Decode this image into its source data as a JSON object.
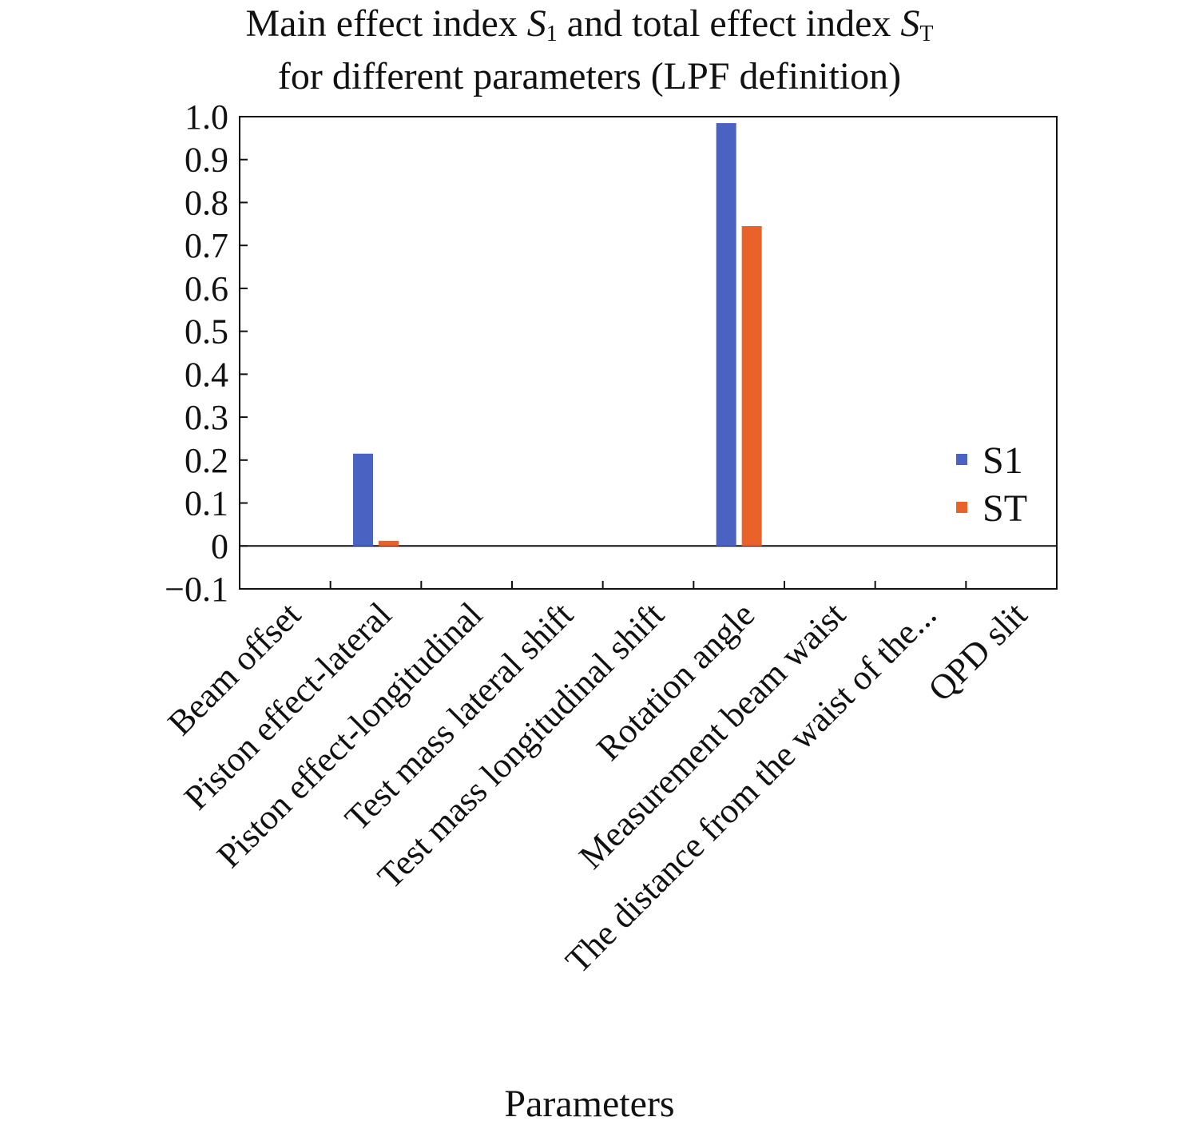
{
  "chart_data": {
    "type": "bar",
    "title": {
      "line1_prefix": "Main effect index ",
      "s1_main": "S",
      "s1_sub": "1",
      "line1_mid": " and total effect index ",
      "st_main": "S",
      "st_sub": "T",
      "line2": "for different parameters (LPF definition)"
    },
    "xlabel": "Parameters",
    "ylabel": "",
    "categories": [
      "Beam offset",
      "Piston effect-lateral",
      "Piston effect-longitudinal",
      "Test mass lateral shift",
      "Test mass longitudinal shift",
      "Rotation angle",
      "Measurement beam waist",
      "The distance from the waist of the...",
      "QPD slit"
    ],
    "series": [
      {
        "name": "S1",
        "color": "#4a62c2",
        "values": [
          0,
          0.215,
          0,
          0,
          0,
          0.985,
          0,
          0,
          0
        ]
      },
      {
        "name": "ST",
        "color": "#e8622a",
        "values": [
          0,
          0.012,
          0,
          0,
          0,
          0.745,
          0,
          0,
          0
        ]
      }
    ],
    "ylim": [
      -0.1,
      1.0
    ],
    "yticks": [
      "1.0",
      "0.9",
      "0.8",
      "0.7",
      "0.6",
      "0.5",
      "0.4",
      "0.3",
      "0.2",
      "0.1",
      "0",
      "−0.1"
    ],
    "ytick_values": [
      1.0,
      0.9,
      0.8,
      0.7,
      0.6,
      0.5,
      0.4,
      0.3,
      0.2,
      0.1,
      0,
      -0.1
    ],
    "grid": false,
    "legend": "right"
  }
}
